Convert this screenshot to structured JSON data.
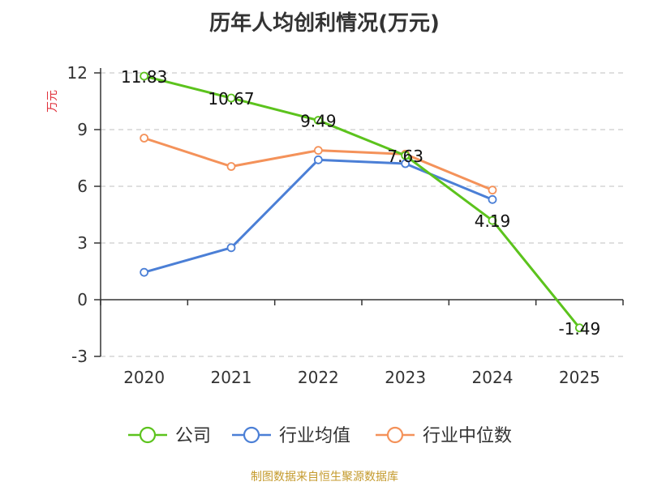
{
  "title": "历年人均创利情况(万元)",
  "footer": "制图数据来自恒生聚源数据库",
  "chart_data": {
    "type": "line",
    "title": "历年人均创利情况(万元)",
    "ylabel": "万元",
    "xlabel": "",
    "categories": [
      "2020",
      "2021",
      "2022",
      "2023",
      "2024",
      "2025"
    ],
    "ylim": [
      -3,
      12
    ],
    "yticks": [
      12,
      9,
      6,
      3,
      0,
      -3
    ],
    "grid": true,
    "legend_position": "bottom",
    "series": [
      {
        "name": "公司",
        "color": "#5cc31d",
        "values": [
          11.83,
          10.67,
          9.49,
          7.63,
          4.19,
          -1.49
        ],
        "labels": [
          "11.83",
          "10.67",
          "9.49",
          "7.63",
          "4.19",
          "-1.49"
        ]
      },
      {
        "name": "行业均值",
        "color": "#4b7fd6",
        "values": [
          1.45,
          2.75,
          7.4,
          7.2,
          5.3,
          null
        ]
      },
      {
        "name": "行业中位数",
        "color": "#f4925a",
        "values": [
          8.55,
          7.05,
          7.9,
          7.7,
          5.8,
          null
        ]
      }
    ]
  }
}
